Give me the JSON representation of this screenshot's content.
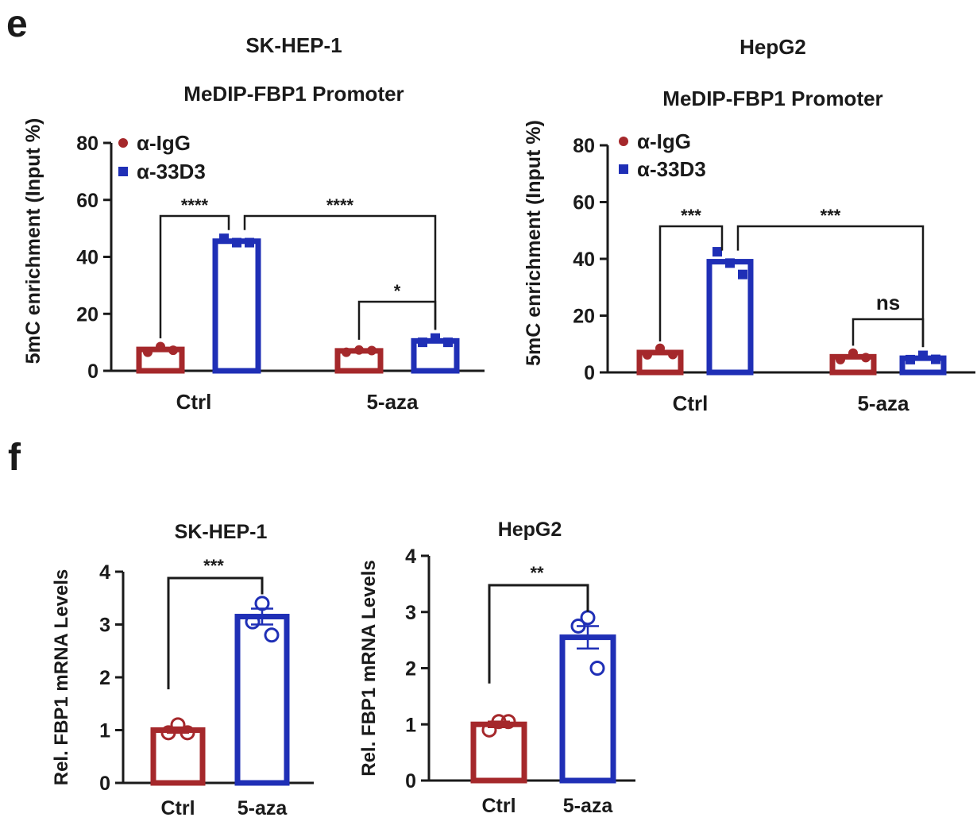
{
  "panels": {
    "e": "e",
    "f": "f"
  },
  "colors": {
    "ctrl_red": "#a5282b",
    "treat_blue": "#1f2fb6",
    "axis": "#1a1a1a"
  },
  "chart_data": [
    {
      "type": "bar",
      "panel": "e",
      "title": "SK-HEP-1",
      "subtitle": "MeDIP-FBP1 Promoter",
      "xlabel": "",
      "ylabel": "5mC enrichment (Input %)",
      "ylim": [
        0,
        80
      ],
      "yticks": [
        0,
        20,
        40,
        60,
        80
      ],
      "categories": [
        "Ctrl",
        "5-aza"
      ],
      "legend": {
        "placement": "top-left",
        "entries": [
          "α-IgG",
          "α-33D3"
        ]
      },
      "series": [
        {
          "name": "α-IgG",
          "values": [
            7.5,
            7.0
          ],
          "points": [
            [
              6.5,
              8.5,
              7.2
            ],
            [
              6.5,
              7.3,
              7.1
            ]
          ]
        },
        {
          "name": "α-33D3",
          "values": [
            45.5,
            10.5
          ],
          "points": [
            [
              46.5,
              45.0,
              45.0
            ],
            [
              10.0,
              11.5,
              10.0
            ]
          ]
        }
      ],
      "significance": [
        {
          "from": [
            0,
            0
          ],
          "to": [
            0,
            1
          ],
          "label": "****"
        },
        {
          "from": [
            0,
            1
          ],
          "to": [
            1,
            1
          ],
          "label": "****"
        },
        {
          "from": [
            1,
            0
          ],
          "to": [
            1,
            1
          ],
          "label": "*"
        }
      ]
    },
    {
      "type": "bar",
      "panel": "e",
      "title": "HepG2",
      "subtitle": "MeDIP-FBP1 Promoter",
      "xlabel": "",
      "ylabel": "5mC enrichment (Input %)",
      "ylim": [
        0,
        80
      ],
      "yticks": [
        0,
        20,
        40,
        60,
        80
      ],
      "categories": [
        "Ctrl",
        "5-aza"
      ],
      "legend": {
        "placement": "top-left",
        "entries": [
          "α-IgG",
          "α-33D3"
        ]
      },
      "series": [
        {
          "name": "α-IgG",
          "values": [
            7.0,
            5.5
          ],
          "points": [
            [
              6.2,
              8.5,
              6.3
            ],
            [
              4.5,
              6.8,
              5.2
            ]
          ]
        },
        {
          "name": "α-33D3",
          "values": [
            39.0,
            5.0
          ],
          "points": [
            [
              42.5,
              38.5,
              34.5
            ],
            [
              4.5,
              6.0,
              4.6
            ]
          ]
        }
      ],
      "significance": [
        {
          "from": [
            0,
            0
          ],
          "to": [
            0,
            1
          ],
          "label": "***"
        },
        {
          "from": [
            0,
            1
          ],
          "to": [
            1,
            1
          ],
          "label": "***"
        },
        {
          "from": [
            1,
            0
          ],
          "to": [
            1,
            1
          ],
          "label": "ns"
        }
      ]
    },
    {
      "type": "bar",
      "panel": "f",
      "title": "SK-HEP-1",
      "xlabel": "",
      "ylabel": "Rel. FBP1 mRNA Levels",
      "ylim": [
        0,
        4
      ],
      "yticks": [
        0,
        1,
        2,
        3,
        4
      ],
      "categories": [
        "Ctrl",
        "5-aza"
      ],
      "values": [
        1.0,
        3.15
      ],
      "errors": [
        0.05,
        0.15
      ],
      "points": [
        [
          1.1,
          0.95,
          0.95
        ],
        [
          3.4,
          3.05,
          2.8
        ]
      ],
      "significance": [
        {
          "from": 0,
          "to": 1,
          "label": "***"
        }
      ]
    },
    {
      "type": "bar",
      "panel": "f",
      "title": "HepG2",
      "xlabel": "",
      "ylabel": "Rel. FBP1 mRNA Levels",
      "ylim": [
        0,
        4
      ],
      "yticks": [
        0,
        1,
        2,
        3,
        4
      ],
      "categories": [
        "Ctrl",
        "5-aza"
      ],
      "values": [
        1.0,
        2.55
      ],
      "errors": [
        0.05,
        0.2
      ],
      "points": [
        [
          1.05,
          0.9,
          1.05
        ],
        [
          2.9,
          2.75,
          2.0
        ]
      ],
      "significance": [
        {
          "from": 0,
          "to": 1,
          "label": "**"
        }
      ]
    }
  ]
}
